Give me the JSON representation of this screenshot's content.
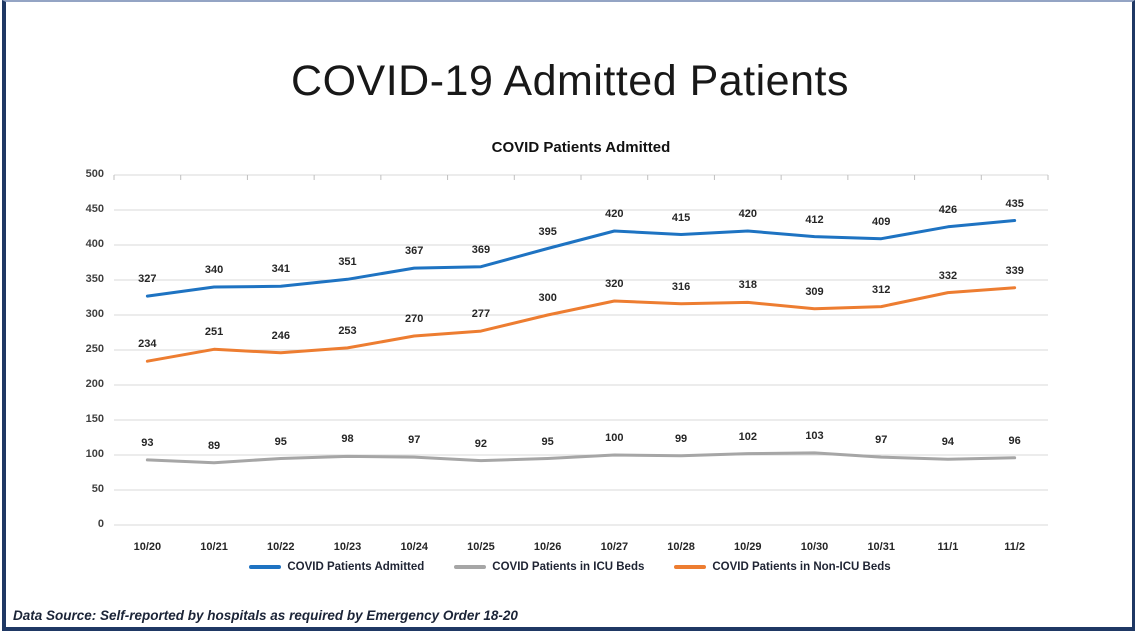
{
  "title": "COVID-19 Admitted Patients",
  "footer": "Data Source: Self-reported by hospitals as required by Emergency Order 18-20",
  "colors": {
    "frame": "#1f3864",
    "frame_top": "#94a4c4",
    "gridline": "#d9d9d9",
    "axis_tick": "#bfbfbf",
    "data_label": "#262626",
    "tick_label": "#404040",
    "legend_text": "#1f2433"
  },
  "chart_data": {
    "type": "line",
    "title": "COVID Patients Admitted",
    "categories": [
      "10/20",
      "10/21",
      "10/22",
      "10/23",
      "10/24",
      "10/25",
      "10/26",
      "10/27",
      "10/28",
      "10/29",
      "10/30",
      "10/31",
      "11/1",
      "11/2"
    ],
    "series": [
      {
        "name": "COVID Patients Admitted",
        "color": "#1e73c2",
        "values": [
          327,
          340,
          341,
          351,
          367,
          369,
          395,
          420,
          415,
          420,
          412,
          409,
          426,
          435
        ]
      },
      {
        "name": "COVID Patients in ICU Beds",
        "color": "#a6a6a6",
        "values": [
          93,
          89,
          95,
          98,
          97,
          92,
          95,
          100,
          99,
          102,
          103,
          97,
          94,
          96
        ]
      },
      {
        "name": "COVID Patients in Non-ICU Beds",
        "color": "#ed7d31",
        "values": [
          234,
          251,
          246,
          253,
          270,
          277,
          300,
          320,
          316,
          318,
          309,
          312,
          332,
          339
        ]
      }
    ],
    "xlabel": "",
    "ylabel": "",
    "ylim": [
      0,
      500
    ],
    "ytick_step": 50,
    "grid": true,
    "data_labels": true,
    "legend_position": "bottom"
  }
}
